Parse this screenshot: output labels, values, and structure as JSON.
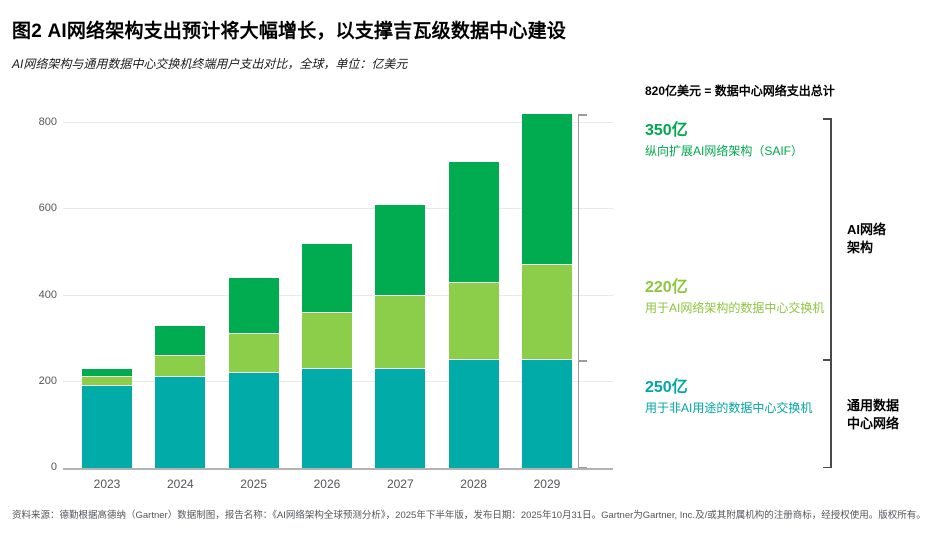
{
  "header": {
    "title": "图2 AI网络架构支出预计将大幅增长，以支撑吉瓦级数据中心建设",
    "subtitle": "AI网络架构与通用数据中心交换机终端用户支出对比，全球，单位：亿美元"
  },
  "chart_data": {
    "type": "bar",
    "stacked": true,
    "categories": [
      "2023",
      "2024",
      "2025",
      "2026",
      "2027",
      "2028",
      "2029"
    ],
    "series": [
      {
        "name": "用于非AI用途的数据中心交换机",
        "color": "#00ABA8",
        "values": [
          190,
          210,
          220,
          230,
          230,
          250,
          250
        ]
      },
      {
        "name": "用于AI网络架构的数据中心交换机",
        "color": "#8CCD49",
        "values": [
          20,
          50,
          90,
          130,
          170,
          180,
          220
        ]
      },
      {
        "name": "纵向扩展AI网络架构（SAIF）",
        "color": "#00AC4F",
        "values": [
          20,
          70,
          130,
          160,
          210,
          280,
          350
        ]
      }
    ],
    "totals": [
      230,
      330,
      440,
      520,
      610,
      710,
      820
    ],
    "title": "AI网络架构与通用数据中心交换机终端用户支出对比",
    "xlabel": "",
    "ylabel": "亿美元",
    "ylim": [
      0,
      800
    ],
    "yticks": [
      0,
      200,
      400,
      600,
      800
    ],
    "grid": true,
    "legend_position": "right-annotations"
  },
  "annotations": {
    "total_line": "820亿美元 = 数据中心网络支出总计",
    "items": [
      {
        "value": "350亿",
        "label": "纵向扩展AI网络架构（SAIF）",
        "color": "#00A84D"
      },
      {
        "value": "220亿",
        "label": "用于AI网络架构的数据中心交换机",
        "color": "#8CC63F"
      },
      {
        "value": "250亿",
        "label": "用于非AI用途的数据中心交换机",
        "color": "#00A7A4"
      }
    ],
    "brackets": [
      {
        "label": "AI网络架构",
        "line1": "AI网络",
        "line2": "架构"
      },
      {
        "label": "通用数据中心网络",
        "line1": "通用数据",
        "line2": "中心网络"
      }
    ]
  },
  "footer": {
    "source": "资料来源：德勤根据高德纳（Gartner）数据制图，报告名称：《AI网络架构全球预测分析》，2025年下半年版，发布日期：2025年10月31日。Gartner为Gartner, Inc.及/或其附属机构的注册商标，经授权使用。版权所有。"
  }
}
